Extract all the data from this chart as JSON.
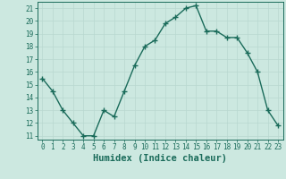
{
  "x": [
    0,
    1,
    2,
    3,
    4,
    5,
    6,
    7,
    8,
    9,
    10,
    11,
    12,
    13,
    14,
    15,
    16,
    17,
    18,
    19,
    20,
    21,
    22,
    23
  ],
  "y": [
    15.5,
    14.5,
    13.0,
    12.0,
    11.0,
    11.0,
    13.0,
    12.5,
    14.5,
    16.5,
    18.0,
    18.5,
    19.8,
    20.3,
    21.0,
    21.2,
    19.2,
    19.2,
    18.7,
    18.7,
    17.5,
    16.0,
    13.0,
    11.8
  ],
  "line_color": "#1a6b5a",
  "marker": "+",
  "marker_size": 4,
  "bg_color": "#cce8e0",
  "grid_color": "#b8d8d0",
  "xlabel": "Humidex (Indice chaleur)",
  "ylim": [
    10.7,
    21.5
  ],
  "xlim": [
    -0.5,
    23.5
  ],
  "yticks": [
    11,
    12,
    13,
    14,
    15,
    16,
    17,
    18,
    19,
    20,
    21
  ],
  "xticks": [
    0,
    1,
    2,
    3,
    4,
    5,
    6,
    7,
    8,
    9,
    10,
    11,
    12,
    13,
    14,
    15,
    16,
    17,
    18,
    19,
    20,
    21,
    22,
    23
  ],
  "tick_label_fontsize": 5.5,
  "xlabel_fontsize": 7.5,
  "tick_color": "#1a6b5a",
  "axis_color": "#1a6b5a",
  "linewidth": 1.0,
  "marker_linewidth": 1.0
}
